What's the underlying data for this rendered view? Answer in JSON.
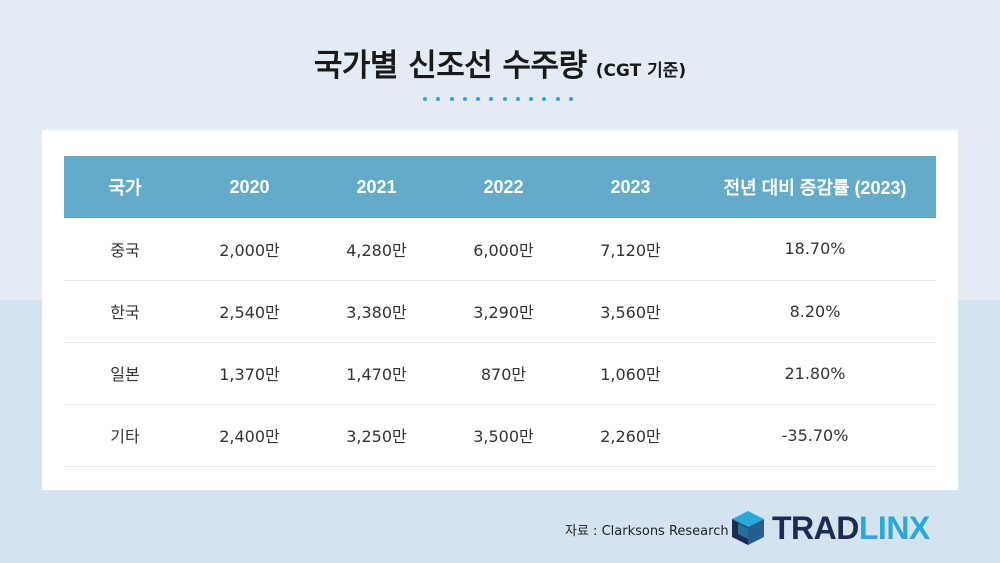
{
  "title": {
    "main": "국가별 신조선 수주량",
    "sub": "(CGT 기준)"
  },
  "chart_data": {
    "type": "table",
    "columns": [
      "국가",
      "2020",
      "2021",
      "2022",
      "2023",
      "전년 대비 증감률 (2023)"
    ],
    "rows": [
      [
        "중국",
        "2,000만",
        "4,280만",
        "6,000만",
        "7,120만",
        "18.70%"
      ],
      [
        "한국",
        "2,540만",
        "3,380만",
        "3,290만",
        "3,560만",
        "8.20%"
      ],
      [
        "일본",
        "1,370만",
        "1,470만",
        "870만",
        "1,060만",
        "21.80%"
      ],
      [
        "기타",
        "2,400만",
        "3,250만",
        "3,500만",
        "2,260만",
        "-35.70%"
      ]
    ]
  },
  "footer": {
    "source": "자료 : Clarksons Research",
    "logo_part1": "TRAD",
    "logo_part2": "LINX"
  },
  "colors": {
    "header_bg": "#64abc9",
    "accent": "#2aa8d8",
    "brand_dark": "#1d2a52"
  }
}
